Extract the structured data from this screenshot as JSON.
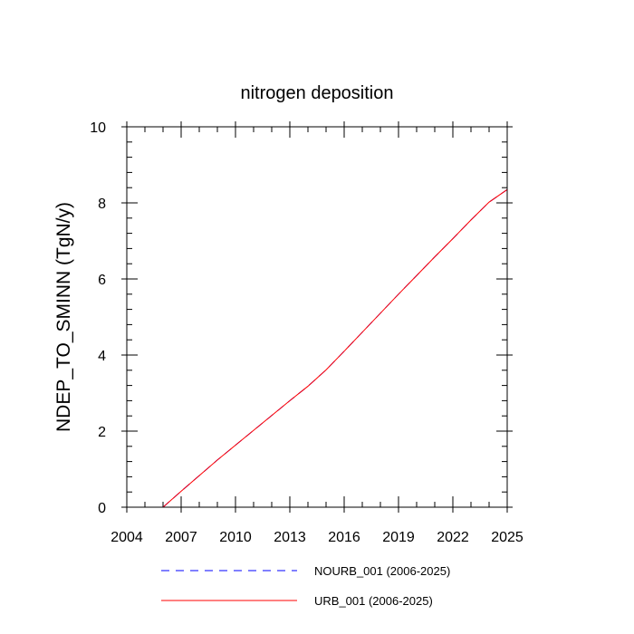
{
  "chart_data": {
    "type": "line",
    "title": "nitrogen deposition",
    "xlabel": "",
    "ylabel": "NDEP_TO_SMINN  (TgN/y)",
    "xlim": [
      2004,
      2025
    ],
    "ylim": [
      0,
      10
    ],
    "xticks": [
      2004,
      2007,
      2010,
      2013,
      2016,
      2019,
      2022,
      2025
    ],
    "yticks": [
      0,
      2,
      4,
      6,
      8,
      10
    ],
    "grid": false,
    "legend_position": "bottom",
    "series": [
      {
        "name": "NOURB_001 (2006-2025)",
        "color": "#0000ff",
        "dash": "dashed",
        "x": [
          2006,
          2007,
          2008,
          2009,
          2010,
          2011,
          2012,
          2013,
          2014,
          2015,
          2016,
          2017,
          2018,
          2019,
          2020,
          2021,
          2022,
          2023,
          2024,
          2025
        ],
        "y": [
          0.0,
          0.42,
          0.83,
          1.24,
          1.63,
          2.02,
          2.41,
          2.8,
          3.18,
          3.61,
          4.1,
          4.6,
          5.1,
          5.6,
          6.09,
          6.58,
          7.06,
          7.55,
          8.02,
          8.35
        ]
      },
      {
        "name": "URB_001 (2006-2025)",
        "color": "#ff0000",
        "dash": "solid",
        "x": [
          2006,
          2007,
          2008,
          2009,
          2010,
          2011,
          2012,
          2013,
          2014,
          2015,
          2016,
          2017,
          2018,
          2019,
          2020,
          2021,
          2022,
          2023,
          2024,
          2025
        ],
        "y": [
          0.0,
          0.42,
          0.83,
          1.24,
          1.63,
          2.02,
          2.41,
          2.8,
          3.18,
          3.61,
          4.1,
          4.6,
          5.1,
          5.6,
          6.09,
          6.58,
          7.06,
          7.55,
          8.02,
          8.35
        ]
      }
    ]
  }
}
